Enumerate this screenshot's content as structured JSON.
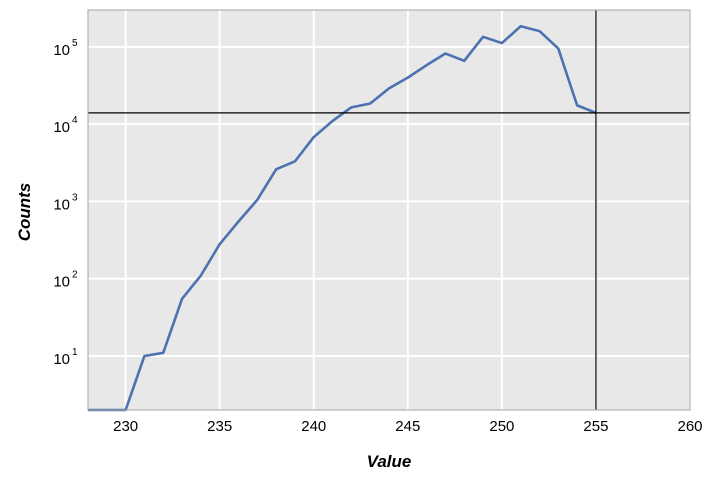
{
  "chart_data": {
    "type": "line",
    "title": "",
    "xlabel": "Value",
    "ylabel": "Counts",
    "xlim": [
      228,
      260
    ],
    "ylim": [
      2,
      300000
    ],
    "yscale": "log",
    "grid": true,
    "legend": "none",
    "x_ticks": [
      230,
      235,
      240,
      245,
      250,
      255,
      260
    ],
    "y_ticks": [
      {
        "value": 10,
        "base": "10",
        "exp": "1"
      },
      {
        "value": 100,
        "base": "10",
        "exp": "2"
      },
      {
        "value": 1000,
        "base": "10",
        "exp": "3"
      },
      {
        "value": 10000,
        "base": "10",
        "exp": "4"
      },
      {
        "value": 100000,
        "base": "10",
        "exp": "5"
      }
    ],
    "series": [
      {
        "color": "#4c72b0",
        "x": [
          228,
          229,
          230,
          231,
          232,
          233,
          234,
          235,
          236,
          237,
          238,
          239,
          240,
          241,
          242,
          243,
          244,
          245,
          246,
          247,
          248,
          249,
          250,
          251,
          252,
          253,
          254,
          255
        ],
        "y": [
          2,
          2,
          0.5,
          10,
          11,
          55,
          110,
          280,
          550,
          1050,
          2600,
          3300,
          6800,
          11000,
          16500,
          18500,
          29000,
          40000,
          58000,
          82000,
          66000,
          135000,
          112000,
          185000,
          160000,
          95000,
          17500,
          14000
        ]
      }
    ],
    "crosshair": {
      "x": 255,
      "y": 14000,
      "color": "#000000"
    },
    "colors": {
      "background": "#e8e8e8",
      "grid": "#ffffff",
      "frame": "#a6a6a6"
    }
  }
}
